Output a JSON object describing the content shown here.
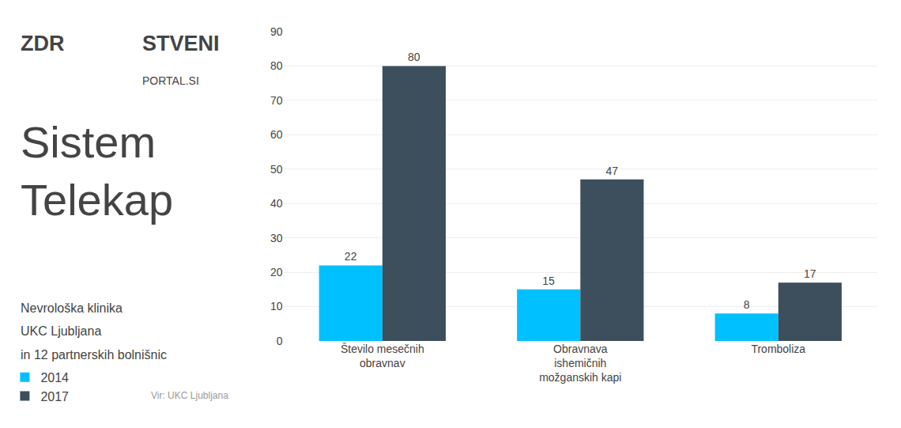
{
  "chart_data": {
    "type": "bar",
    "title": "Sistem\nTelekap",
    "subtitle": "Nevrološka klinika\nUKC Ljubljana\nin 12 partnerskih bolnišnic",
    "annotations": [
      "ZDR",
      "STVENI",
      "PORTAL.SI",
      "Vir: UKC Ljubljana"
    ],
    "categories": [
      "Število mesečnih\nobravnav",
      "Obravnava\nishemičnih\nmožganskih kapi",
      "Tromboliza"
    ],
    "series": [
      {
        "name": "2014",
        "color": "#00C0FF",
        "values": [
          22,
          15,
          8
        ]
      },
      {
        "name": "2017",
        "color": "#3D4F5C",
        "values": [
          80,
          47,
          17
        ]
      }
    ],
    "ylim": [
      0,
      90
    ],
    "yticks": [
      0,
      10,
      20,
      30,
      40,
      50,
      60,
      70,
      80,
      90
    ],
    "grid": true,
    "legend": "lower left",
    "data_labels": true
  }
}
